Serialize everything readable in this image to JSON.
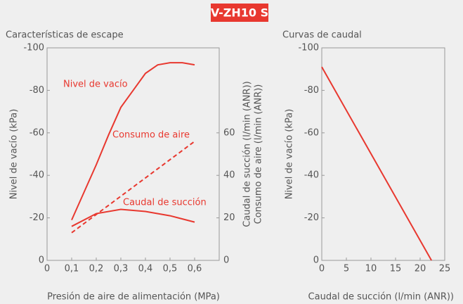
{
  "badge": "V-ZH10 S",
  "chart_data": [
    {
      "type": "line",
      "title": "Características de escape",
      "xlabel": "Presión de aire de alimentación (MPa)",
      "ylabel": "Nivel de vacío (kPa)",
      "y2label": [
        "Caudal de succión (l/min (ANR))",
        "Consumo de aire (l/min (ANR))"
      ],
      "xlim": [
        0,
        0.7
      ],
      "xticks": [
        0,
        {
          "value": 0.1,
          "label": "0,1"
        },
        {
          "value": 0.2,
          "label": "0,2"
        },
        {
          "value": 0.3,
          "label": "0,3"
        },
        {
          "value": 0.4,
          "label": "0,4"
        },
        {
          "value": 0.5,
          "label": "0,5"
        },
        {
          "value": 0.6,
          "label": "0,6"
        }
      ],
      "ylim": [
        0,
        -100
      ],
      "yticks": [
        0,
        -20,
        -40,
        -60,
        -80,
        -100
      ],
      "y2lim": [
        0,
        100
      ],
      "y2ticks": [
        0,
        20,
        40,
        60
      ],
      "series": [
        {
          "name": "Nivel de vacío",
          "color": "#e8382f",
          "linestyle": "solid",
          "x": [
            0.1,
            0.15,
            0.2,
            0.25,
            0.3,
            0.35,
            0.4,
            0.45,
            0.5,
            0.55,
            0.6
          ],
          "values": [
            -19,
            -32,
            -45,
            -59,
            -72,
            -80,
            -88,
            -92,
            -93,
            -93,
            -92
          ]
        },
        {
          "name": "Consumo de aire",
          "color": "#e8382f",
          "linestyle": "dashed",
          "axis": "y2",
          "x": [
            0.1,
            0.6
          ],
          "values": [
            13,
            56
          ]
        },
        {
          "name": "Caudal de succión",
          "color": "#e8382f",
          "linestyle": "solid",
          "axis": "y2",
          "x": [
            0.1,
            0.2,
            0.3,
            0.4,
            0.5,
            0.6
          ],
          "values": [
            16,
            22,
            24,
            23,
            21,
            18
          ]
        }
      ]
    },
    {
      "type": "line",
      "title": "Curvas de caudal",
      "xlabel": "Caudal de succión (l/min (ANR))",
      "ylabel": "Nivel de vacío (kPa)",
      "xlim": [
        0,
        25
      ],
      "xticks": [
        0,
        5,
        10,
        15,
        20,
        25
      ],
      "ylim": [
        0,
        -100
      ],
      "yticks": [
        0,
        -20,
        -40,
        -60,
        -80,
        -100
      ],
      "series": [
        {
          "color": "#e8382f",
          "linestyle": "solid",
          "x": [
            0,
            22.3
          ],
          "values": [
            -91,
            0
          ]
        }
      ]
    }
  ]
}
